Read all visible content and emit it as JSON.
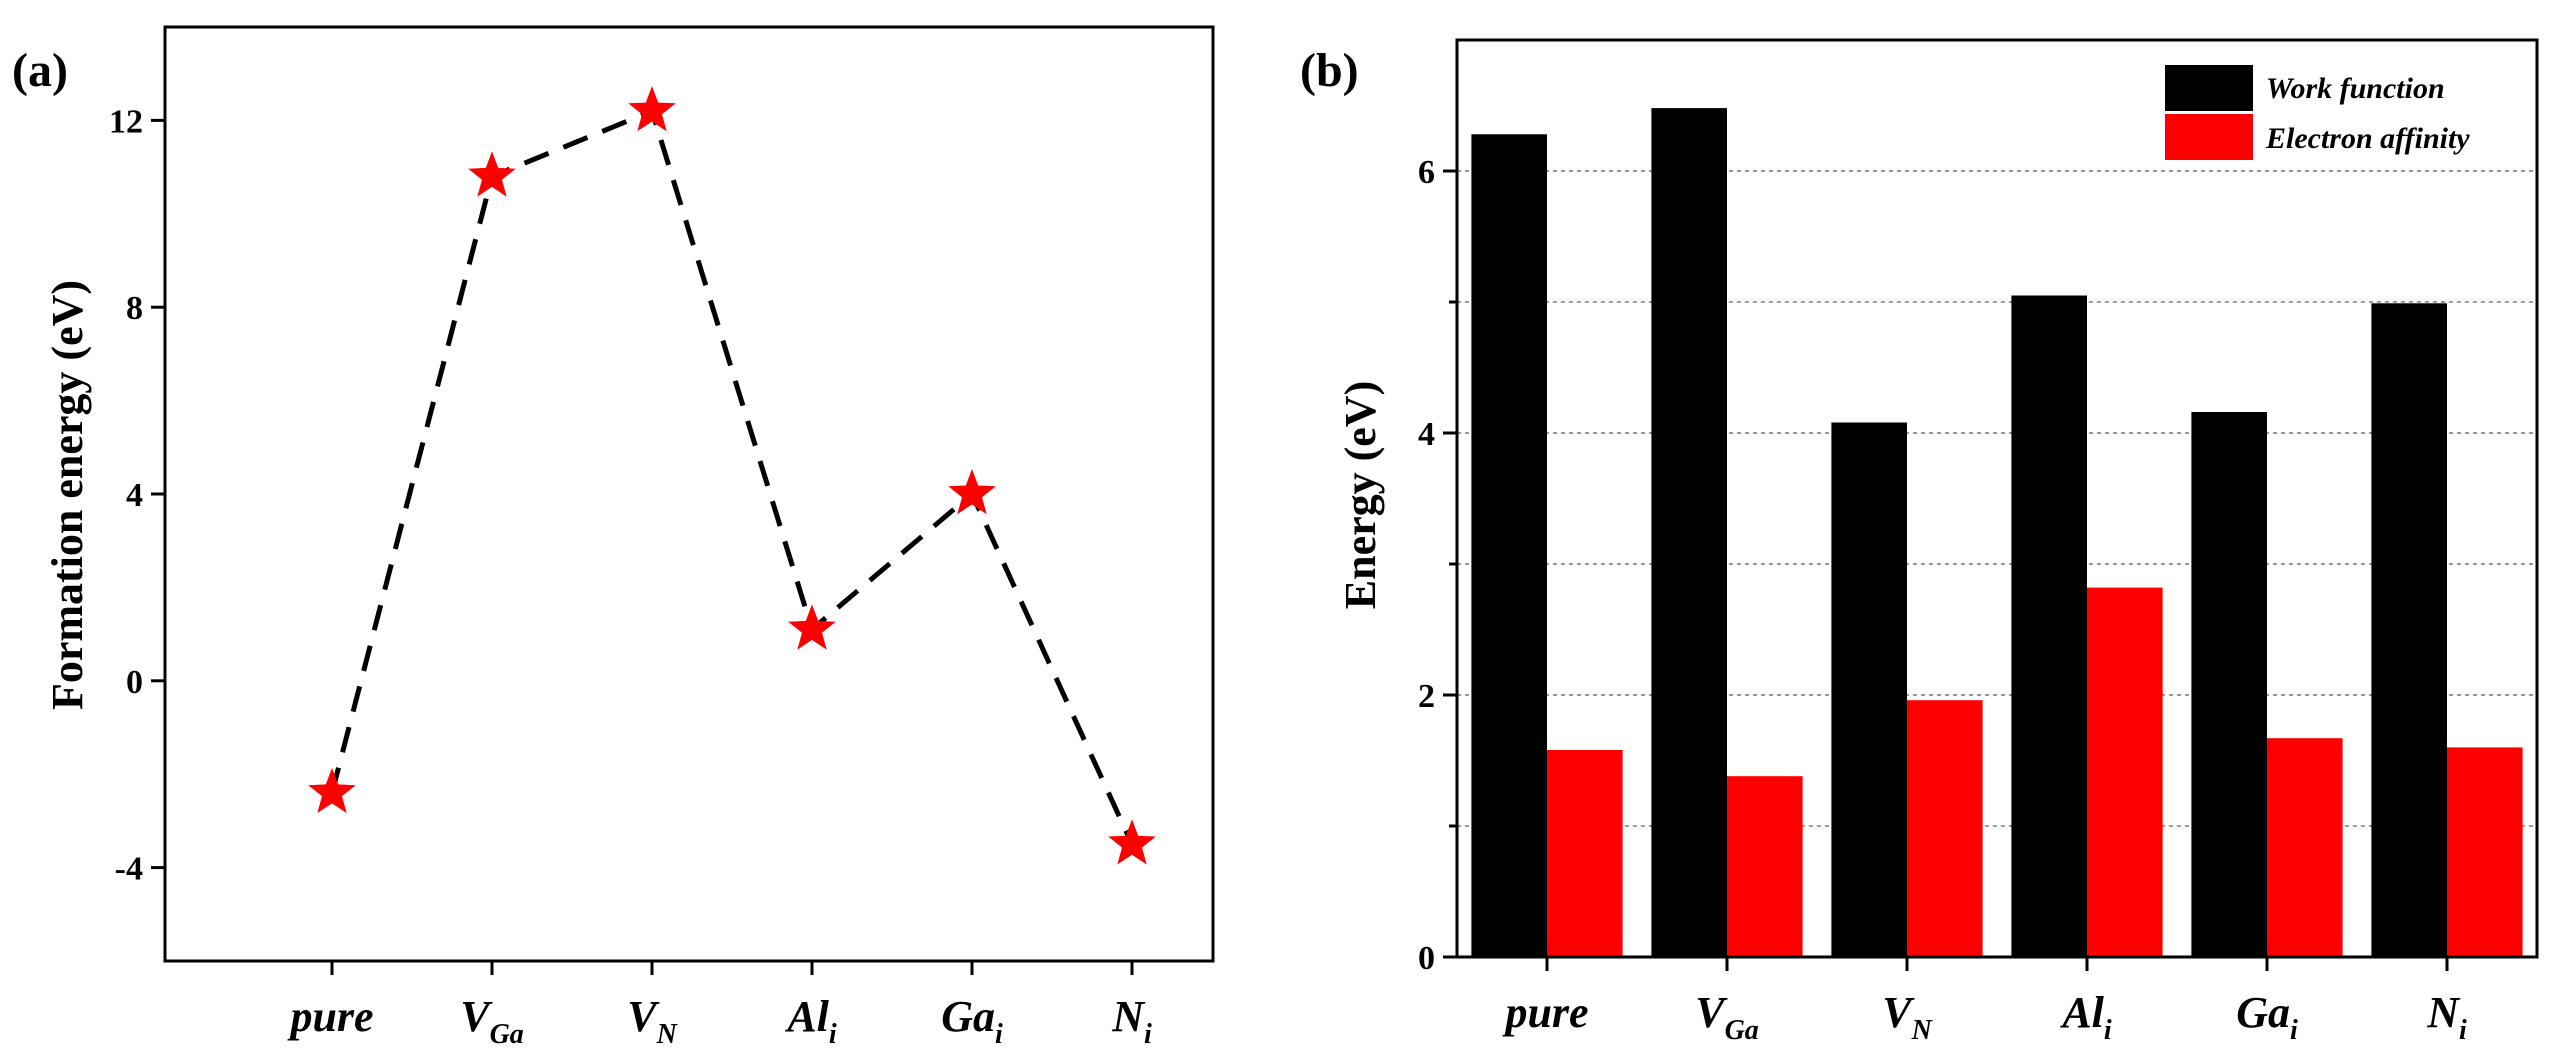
{
  "chart_data": [
    {
      "panel": "(a)",
      "type": "scatter",
      "line_style": "dashed",
      "marker": "star",
      "color": "#ff0000",
      "line_color": "#000000",
      "categories": [
        {
          "base": "pure",
          "sub": ""
        },
        {
          "base": "V",
          "sub": "Ga"
        },
        {
          "base": "V",
          "sub": "N"
        },
        {
          "base": "Al",
          "sub": "i"
        },
        {
          "base": "Ga",
          "sub": "i"
        },
        {
          "base": "N",
          "sub": "i"
        }
      ],
      "values": [
        -2.4,
        10.8,
        12.2,
        1.1,
        4.0,
        -3.5
      ],
      "ylabel": "Formation energy (eV)",
      "xlabel": "",
      "ylim": [
        -6,
        14
      ],
      "yticks": [
        -4,
        0,
        4,
        8,
        12
      ],
      "ytick_labels": [
        "-4",
        "0",
        "4",
        "8",
        "12"
      ]
    },
    {
      "panel": "(b)",
      "type": "bar",
      "categories": [
        {
          "base": "pure",
          "sub": ""
        },
        {
          "base": "V",
          "sub": "Ga"
        },
        {
          "base": "V",
          "sub": "N"
        },
        {
          "base": "Al",
          "sub": "i"
        },
        {
          "base": "Ga",
          "sub": "i"
        },
        {
          "base": "N",
          "sub": "i"
        }
      ],
      "series": [
        {
          "name": "Work function",
          "color": "#000000",
          "values": [
            6.28,
            6.48,
            4.08,
            5.05,
            4.16,
            4.99
          ]
        },
        {
          "name": "Electron affinity",
          "color": "#ff0000",
          "values": [
            1.58,
            1.38,
            1.96,
            2.82,
            1.67,
            1.6
          ]
        }
      ],
      "ylabel": "Energy (eV)",
      "xlabel": "",
      "ylim": [
        0,
        7
      ],
      "yticks": [
        0,
        2,
        4,
        6
      ],
      "ytick_labels": [
        "0",
        "2",
        "4",
        "6"
      ],
      "grid": true,
      "legend_position": "top-right"
    }
  ]
}
